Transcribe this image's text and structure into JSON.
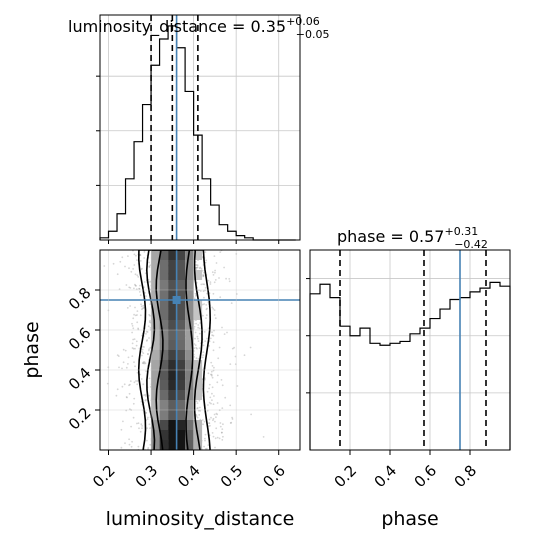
{
  "chart_data": [
    {
      "type": "histogram",
      "panel": "top-left",
      "title": {
        "parameter": "luminosity_distance",
        "median": "0.35",
        "plus": "+0.06",
        "minus": "−0.05"
      },
      "x_range": [
        0.18,
        0.65
      ],
      "bin_edges": [
        0.18,
        0.2,
        0.22,
        0.24,
        0.26,
        0.28,
        0.3,
        0.32,
        0.34,
        0.36,
        0.38,
        0.4,
        0.42,
        0.44,
        0.46,
        0.48,
        0.5,
        0.52,
        0.54,
        0.56,
        0.58,
        0.6,
        0.62,
        0.64
      ],
      "counts": [
        1,
        4,
        12,
        28,
        45,
        62,
        80,
        92,
        98,
        88,
        68,
        48,
        28,
        16,
        7,
        4,
        2,
        1,
        0,
        0,
        0,
        0,
        0
      ],
      "y_max": 103,
      "quantiles": [
        0.3,
        0.35,
        0.41
      ],
      "truth": 0.36,
      "grid": true
    },
    {
      "type": "histogram",
      "panel": "bottom-right",
      "title": {
        "parameter": "phase",
        "median": "0.57",
        "plus": "+0.31",
        "minus": "−0.42"
      },
      "xlabel": "phase",
      "x_range": [
        0.0,
        1.0
      ],
      "x_ticks": [
        "0.2",
        "0.4",
        "0.6",
        "0.8"
      ],
      "bin_edges": [
        0.0,
        0.05,
        0.1,
        0.15,
        0.2,
        0.25,
        0.3,
        0.35,
        0.4,
        0.45,
        0.5,
        0.55,
        0.6,
        0.65,
        0.7,
        0.75,
        0.8,
        0.85,
        0.9,
        0.95,
        1.0
      ],
      "counts": [
        82,
        87,
        80,
        65,
        60,
        64,
        56,
        55,
        56,
        57,
        61,
        64,
        69,
        74,
        79,
        80,
        83,
        85,
        88,
        86
      ],
      "y_max": 105,
      "quantiles": [
        0.15,
        0.57,
        0.88
      ],
      "truth": 0.75,
      "grid": true
    },
    {
      "type": "heatmap",
      "panel": "bottom-left",
      "xlabel": "luminosity_distance",
      "ylabel": "phase",
      "x_range": [
        0.18,
        0.65
      ],
      "y_range": [
        0.0,
        1.0
      ],
      "x_ticks": [
        "0.2",
        "0.3",
        "0.4",
        "0.5",
        "0.6"
      ],
      "y_ticks": [
        "0.2",
        "0.4",
        "0.6",
        "0.8"
      ],
      "truth": {
        "x": 0.36,
        "y": 0.75
      },
      "grid": true
    }
  ],
  "colors": {
    "truth": "#4682b4",
    "lines": "#000000",
    "grid": "#c8c8c8"
  }
}
